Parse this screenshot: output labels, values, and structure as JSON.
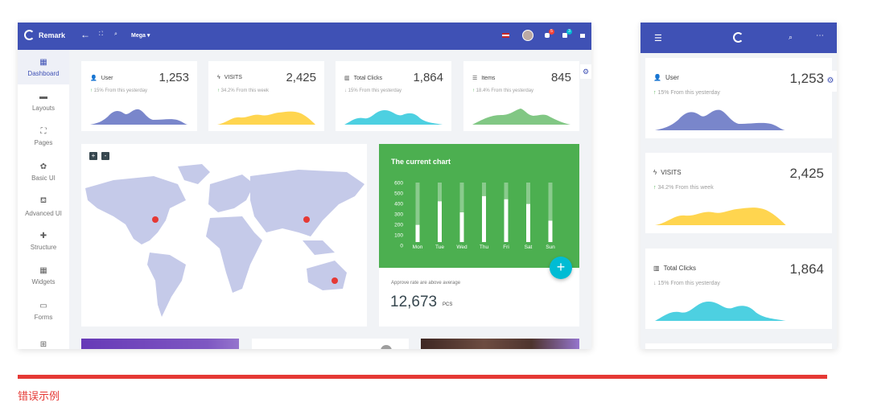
{
  "app": {
    "brand": "Remark",
    "mega_menu": "Mega"
  },
  "header": {
    "notifications_badge": "5",
    "messages_badge": "3"
  },
  "sidebar": {
    "items": [
      {
        "label": "Dashboard",
        "icon": "dashboard-icon",
        "active": true
      },
      {
        "label": "Layouts",
        "icon": "layouts-icon"
      },
      {
        "label": "Pages",
        "icon": "pages-icon"
      },
      {
        "label": "Basic UI",
        "icon": "palette-icon"
      },
      {
        "label": "Advanced UI",
        "icon": "paint-bucket-icon"
      },
      {
        "label": "Structure",
        "icon": "puzzle-icon"
      },
      {
        "label": "Widgets",
        "icon": "widgets-icon"
      },
      {
        "label": "Forms",
        "icon": "forms-icon"
      },
      {
        "label": "",
        "icon": "table-icon"
      }
    ]
  },
  "stats": [
    {
      "title": "User",
      "value": "1,253",
      "trend": "up",
      "change": "15% From this yesterday",
      "color": "#7986cb"
    },
    {
      "title": "VISITS",
      "value": "2,425",
      "trend": "up",
      "change": "34.2% From this week",
      "color": "#ffd54f"
    },
    {
      "title": "Total Clicks",
      "value": "1,864",
      "trend": "down",
      "change": "15% From this yesterday",
      "color": "#4dd0e1"
    },
    {
      "title": "Items",
      "value": "845",
      "trend": "up",
      "change": "18.4% From this yesterday",
      "color": "#81c784"
    }
  ],
  "map": {
    "zoom_in": "+",
    "zoom_out": "-",
    "fill": "#c5cae9",
    "marker_color": "#e53935"
  },
  "chart_data": {
    "type": "bar",
    "title": "The current chart",
    "categories": [
      "Mon",
      "Tue",
      "Wed",
      "Thu",
      "Fri",
      "Sat",
      "Sun"
    ],
    "values": [
      195,
      420,
      315,
      470,
      440,
      395,
      235
    ],
    "ylim": [
      0,
      600
    ],
    "yticks": [
      0,
      100,
      200,
      300,
      400,
      500,
      600
    ],
    "background": "#4caf50"
  },
  "approve": {
    "label": "Approve rate are above average",
    "value": "12,673",
    "unit": "PCS"
  },
  "fab": {
    "label": "+"
  },
  "footer": {
    "caption": "错误示例",
    "rule_color": "#e53935"
  }
}
